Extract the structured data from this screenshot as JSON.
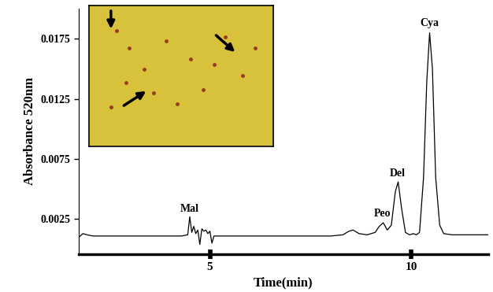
{
  "chart_data": {
    "type": "line",
    "x_label": "Time(min)",
    "y_label": "Absorbance 520nm",
    "x": [
      1.75,
      1.85,
      1.95,
      2.1,
      2.5,
      3.0,
      3.5,
      4.0,
      4.3,
      4.45,
      4.5,
      4.55,
      4.6,
      4.65,
      4.7,
      4.75,
      4.8,
      4.85,
      4.9,
      4.95,
      5.0,
      5.05,
      5.1,
      5.3,
      6.0,
      7.0,
      8.0,
      8.3,
      8.45,
      8.55,
      8.7,
      8.9,
      9.1,
      9.2,
      9.3,
      9.4,
      9.5,
      9.6,
      9.67,
      9.75,
      9.85,
      9.95,
      10.05,
      10.12,
      10.2,
      10.3,
      10.38,
      10.45,
      10.52,
      10.6,
      10.7,
      10.8,
      11.0,
      11.5,
      11.9
    ],
    "values": [
      0.001,
      0.0013,
      0.0012,
      0.0011,
      0.0011,
      0.0011,
      0.0011,
      0.0011,
      0.0011,
      0.0012,
      0.0027,
      0.0014,
      0.0019,
      0.0013,
      0.0016,
      0.0004,
      0.0017,
      0.0015,
      0.0016,
      0.0013,
      0.0015,
      0.0005,
      0.0011,
      0.0011,
      0.0011,
      0.0011,
      0.0011,
      0.0012,
      0.0015,
      0.0016,
      0.0013,
      0.0012,
      0.0014,
      0.0019,
      0.0022,
      0.0016,
      0.002,
      0.0048,
      0.0056,
      0.0035,
      0.0014,
      0.0012,
      0.0013,
      0.0012,
      0.0014,
      0.006,
      0.014,
      0.018,
      0.015,
      0.006,
      0.002,
      0.0013,
      0.0012,
      0.0012,
      0.0012
    ],
    "color": "#000000",
    "xlim": [
      1.75,
      11.9
    ],
    "ylim": [
      -0.0004,
      0.02
    ],
    "xticks": [
      5,
      10
    ],
    "yticks": [
      0.0025,
      0.0075,
      0.0125,
      0.0175
    ],
    "grid": false,
    "annotations": [
      {
        "text": "Mal",
        "x": 4.5,
        "y": 0.0029
      },
      {
        "text": "Peo",
        "x": 9.27,
        "y": 0.0025
      },
      {
        "text": "Del",
        "x": 9.65,
        "y": 0.0059
      },
      {
        "text": "Cya",
        "x": 10.45,
        "y": 0.0184
      }
    ]
  }
}
